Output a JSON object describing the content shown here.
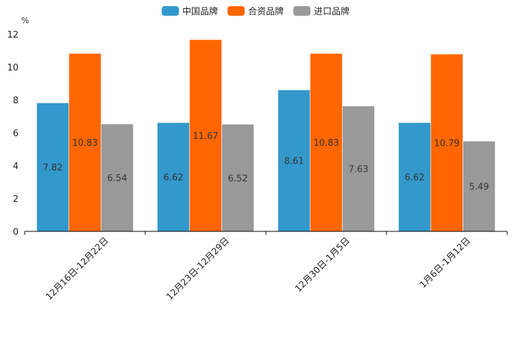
{
  "chart_data": {
    "type": "bar",
    "title": "",
    "xlabel": "",
    "ylabel": "%",
    "ylim": [
      0,
      12
    ],
    "yticks": [
      0,
      2,
      4,
      6,
      8,
      10,
      12
    ],
    "grid": false,
    "legend_position": "top-center",
    "categories": [
      "12月16日-12月22日",
      "12月23日-12月29日",
      "12月30日-1月5日",
      "1月6日-1月12日"
    ],
    "series": [
      {
        "name": "中国品牌",
        "color": "#3399cc",
        "values": [
          7.82,
          6.62,
          8.61,
          6.62
        ],
        "labels": [
          "7.82",
          "6.62",
          "8.61",
          "6.62"
        ]
      },
      {
        "name": "合资品牌",
        "color": "#ff6600",
        "values": [
          10.83,
          11.67,
          10.83,
          10.79
        ],
        "labels": [
          "10.83",
          "11.67",
          "10.83",
          "10.79"
        ]
      },
      {
        "name": "进口品牌",
        "color": "#999999",
        "values": [
          6.54,
          6.52,
          7.63,
          5.49
        ],
        "labels": [
          "6.54",
          "6.52",
          "7.63",
          "5.49"
        ]
      }
    ]
  }
}
